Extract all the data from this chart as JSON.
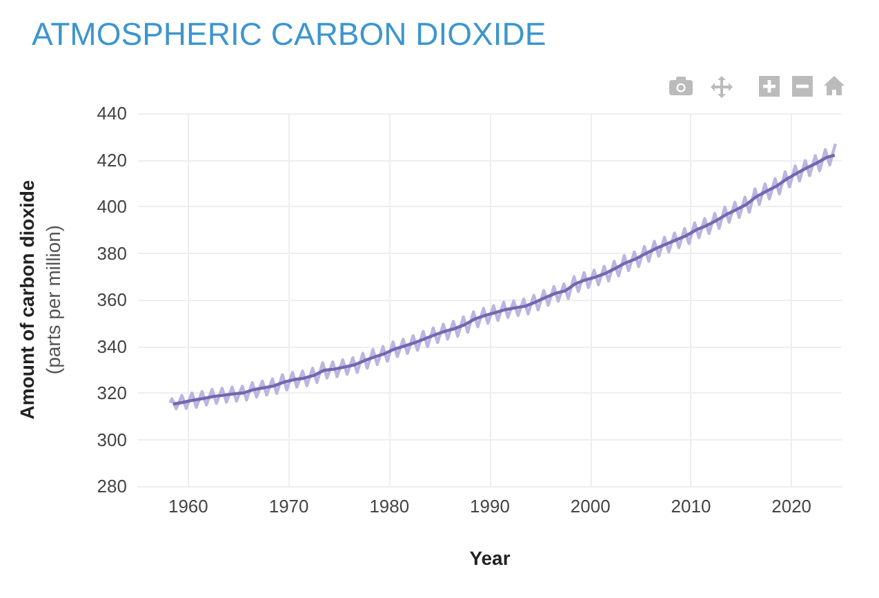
{
  "chart_data": {
    "type": "line",
    "title": "ATMOSPHERIC CARBON DIOXIDE",
    "xlabel": "Year",
    "ylabel": "Amount of carbon dioxide\n(parts per million)",
    "xlim": [
      1955,
      2025
    ],
    "xticks": [
      1960,
      1970,
      1980,
      1990,
      2000,
      2010,
      2020
    ],
    "ylim": [
      280,
      440
    ],
    "yticks": [
      280,
      300,
      320,
      340,
      360,
      380,
      400,
      420,
      440
    ],
    "grid": true,
    "series": [
      {
        "color": "#bbb5e0",
        "x": [
          1958.2,
          1958.37,
          1958.8,
          1959.37,
          1959.8,
          1960.37,
          1960.8,
          1961.37,
          1961.8,
          1962.37,
          1962.8,
          1963.37,
          1963.8,
          1964.37,
          1964.8,
          1965.37,
          1965.8,
          1966.37,
          1966.8,
          1967.37,
          1967.8,
          1968.37,
          1968.8,
          1969.37,
          1969.8,
          1970.37,
          1970.8,
          1971.37,
          1971.8,
          1972.37,
          1972.8,
          1973.37,
          1973.8,
          1974.37,
          1974.8,
          1975.37,
          1975.8,
          1976.37,
          1976.8,
          1977.37,
          1977.8,
          1978.37,
          1978.8,
          1979.37,
          1979.8,
          1980.37,
          1980.8,
          1981.37,
          1981.8,
          1982.37,
          1982.8,
          1983.37,
          1983.8,
          1984.37,
          1984.8,
          1985.37,
          1985.8,
          1986.37,
          1986.8,
          1987.37,
          1987.8,
          1988.37,
          1988.8,
          1989.37,
          1989.8,
          1990.37,
          1990.8,
          1991.37,
          1991.8,
          1992.37,
          1992.8,
          1993.37,
          1993.8,
          1994.37,
          1994.8,
          1995.37,
          1995.8,
          1996.37,
          1996.8,
          1997.37,
          1997.8,
          1998.37,
          1998.8,
          1999.37,
          1999.8,
          2000.37,
          2000.8,
          2001.37,
          2001.8,
          2002.37,
          2002.8,
          2003.37,
          2003.8,
          2004.37,
          2004.8,
          2005.37,
          2005.8,
          2006.37,
          2006.8,
          2007.37,
          2007.8,
          2008.37,
          2008.8,
          2009.37,
          2009.8,
          2010.37,
          2010.8,
          2011.37,
          2011.8,
          2012.37,
          2012.8,
          2013.37,
          2013.8,
          2014.37,
          2014.8,
          2015.37,
          2015.8,
          2016.37,
          2016.8,
          2017.37,
          2017.8,
          2018.37,
          2018.8,
          2019.37,
          2019.8,
          2020.37,
          2020.8,
          2021.37,
          2021.8,
          2022.37,
          2022.8,
          2023.37,
          2023.8,
          2024.37
        ],
        "values": [
          315.7,
          317.5,
          313.2,
          318.9,
          313.3,
          320.0,
          313.8,
          320.6,
          314.8,
          321.5,
          315.5,
          322.0,
          316.0,
          322.5,
          316.5,
          322.9,
          317.0,
          324.4,
          318.2,
          325.1,
          319.1,
          326.0,
          319.8,
          327.8,
          321.3,
          328.8,
          322.5,
          329.4,
          323.1,
          330.6,
          324.5,
          332.9,
          326.4,
          333.3,
          327.0,
          334.2,
          328.0,
          335.1,
          328.8,
          337.0,
          330.6,
          338.6,
          332.2,
          339.9,
          333.6,
          341.9,
          335.6,
          343.0,
          336.9,
          344.6,
          338.3,
          346.4,
          339.9,
          347.9,
          341.6,
          349.5,
          343.1,
          350.7,
          344.3,
          352.6,
          346.0,
          354.8,
          348.4,
          356.3,
          349.9,
          357.4,
          351.1,
          358.9,
          352.4,
          359.5,
          353.2,
          360.3,
          353.9,
          361.9,
          355.6,
          364.0,
          357.6,
          365.6,
          359.4,
          366.8,
          360.5,
          369.9,
          363.5,
          371.6,
          365.2,
          372.7,
          366.4,
          374.3,
          368.0,
          376.5,
          370.2,
          378.9,
          372.5,
          380.5,
          374.2,
          382.8,
          376.5,
          385.0,
          378.6,
          386.8,
          380.5,
          388.6,
          382.3,
          390.5,
          384.1,
          393.0,
          386.6,
          394.8,
          388.4,
          397.0,
          390.6,
          399.7,
          393.2,
          401.8,
          395.3,
          404.0,
          397.5,
          407.5,
          400.9,
          409.7,
          403.2,
          411.9,
          405.4,
          414.9,
          408.4,
          417.4,
          410.9,
          419.7,
          413.2,
          421.8,
          415.3,
          424.4,
          417.8,
          426.9
        ]
      },
      {
        "color": "#7466b0",
        "x": [
          1958.5,
          1959.5,
          1960.5,
          1961.5,
          1962.5,
          1963.5,
          1964.5,
          1965.5,
          1966.5,
          1967.5,
          1968.5,
          1969.5,
          1970.5,
          1971.5,
          1972.5,
          1973.5,
          1974.5,
          1975.5,
          1976.5,
          1977.5,
          1978.5,
          1979.5,
          1980.5,
          1981.5,
          1982.5,
          1983.5,
          1984.5,
          1985.5,
          1986.5,
          1987.5,
          1988.5,
          1989.5,
          1990.5,
          1991.5,
          1992.5,
          1993.5,
          1994.5,
          1995.5,
          1996.5,
          1997.5,
          1998.5,
          1999.5,
          2000.5,
          2001.5,
          2002.5,
          2003.5,
          2004.5,
          2005.5,
          2006.5,
          2007.5,
          2008.5,
          2009.5,
          2010.5,
          2011.5,
          2012.5,
          2013.5,
          2014.5,
          2015.5,
          2016.5,
          2017.5,
          2018.5,
          2019.5,
          2020.5,
          2021.5,
          2022.5,
          2023.5,
          2024.3
        ],
        "values": [
          315.2,
          316.0,
          316.9,
          317.6,
          318.5,
          319.0,
          319.6,
          320.0,
          321.4,
          322.2,
          323.0,
          324.6,
          325.7,
          326.3,
          327.5,
          329.7,
          330.2,
          331.1,
          332.0,
          333.8,
          335.4,
          336.8,
          338.8,
          340.1,
          341.5,
          343.2,
          344.9,
          346.4,
          347.6,
          349.3,
          351.7,
          353.2,
          354.4,
          355.7,
          356.5,
          357.2,
          358.9,
          360.9,
          362.7,
          363.8,
          366.8,
          368.5,
          369.7,
          371.3,
          373.5,
          375.8,
          377.5,
          379.8,
          381.9,
          383.8,
          385.6,
          387.4,
          389.9,
          391.7,
          393.9,
          396.5,
          398.6,
          400.8,
          404.2,
          406.5,
          408.7,
          411.7,
          414.2,
          416.5,
          418.6,
          421.1,
          422.0
        ]
      }
    ]
  }
}
